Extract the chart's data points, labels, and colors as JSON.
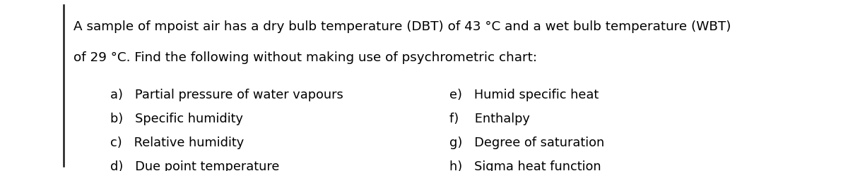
{
  "background_color": "#ffffff",
  "border_color": "#1a1a1a",
  "paragraph_line1": "A sample of mpoist air has a dry bulb temperature (DBT) of 43 °C and a wet bulb temperature (WBT)",
  "paragraph_line2": "of 29 °C. Find the following without making use of psychrometric chart:",
  "left_items": [
    "a)   Partial pressure of water vapours",
    "b)   Specific humidity",
    "c)   Relative humidity",
    "d)   Due point temperature"
  ],
  "right_items": [
    "e)   Humid specific heat",
    "f)    Enthalpy",
    "g)   Degree of saturation",
    "h)   Sigma heat function"
  ],
  "font_size_para": 13.2,
  "font_size_items": 12.8,
  "figwidth": 12.0,
  "figheight": 2.43,
  "dpi": 100
}
